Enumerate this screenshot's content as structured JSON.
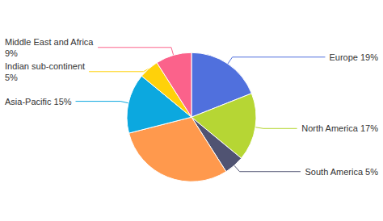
{
  "chart_data": {
    "type": "pie",
    "categories": [
      "Europe 19%",
      "North America 17%",
      "South America 5%",
      null,
      "Asia-Pacific 15%",
      "Indian sub-continent\n5%",
      "Middle East and Africa\n9%"
    ],
    "values": [
      19,
      17,
      5,
      30,
      15,
      5,
      9
    ]
  }
}
